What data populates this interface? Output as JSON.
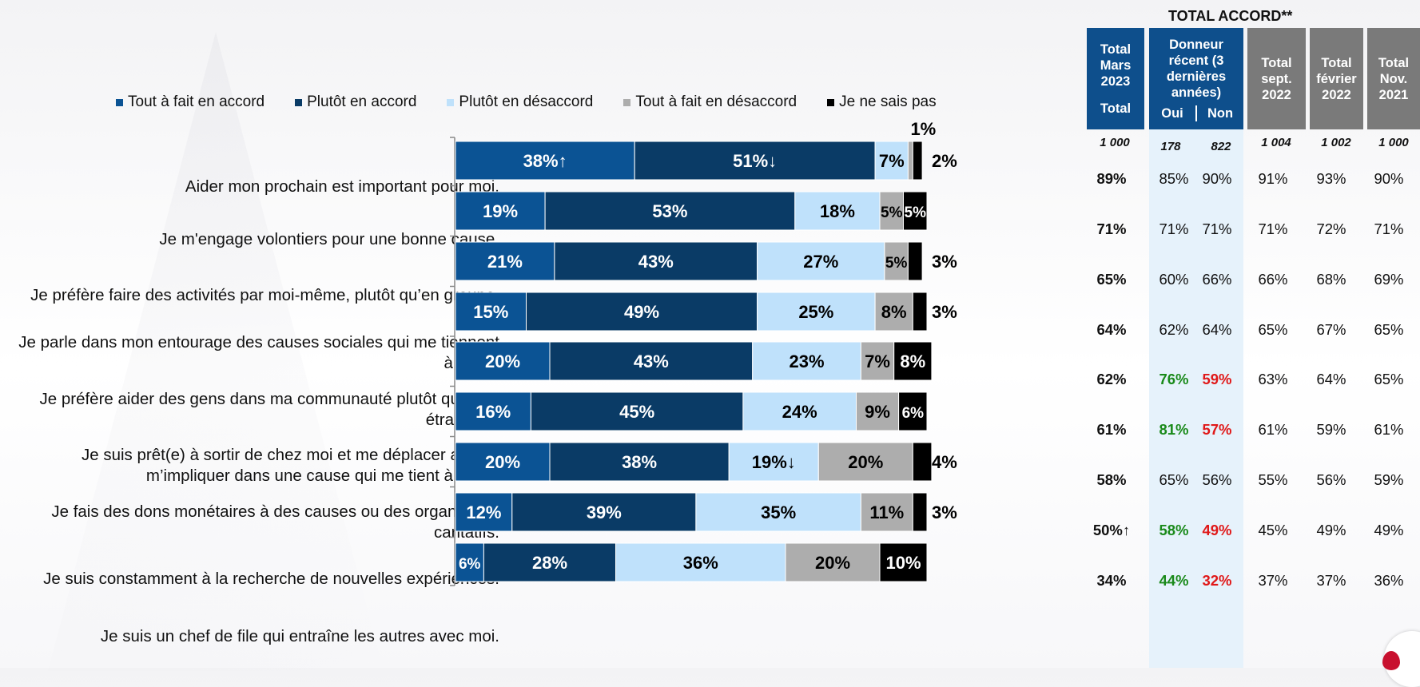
{
  "legend": [
    {
      "label": "Tout à fait en accord",
      "color": "#0b5394"
    },
    {
      "label": "Plutôt en accord",
      "color": "#0a3b66"
    },
    {
      "label": "Plutôt en désaccord",
      "color": "#bfe1fb"
    },
    {
      "label": "Tout à fait en désaccord",
      "color": "#adadad"
    },
    {
      "label": "Je ne sais pas",
      "color": "#000000"
    }
  ],
  "chart_data": {
    "type": "bar",
    "orientation": "horizontal-stacked-100",
    "categories": [
      "Aider mon prochain est important pour moi.",
      "Je m'engage volontiers pour une bonne cause.",
      "Je préfère faire des activités par moi-même, plutôt qu’en groupe.",
      "Je parle dans mon entourage des causes sociales qui me tiennent à cœur.",
      "Je préfère aider des gens dans ma communauté plutôt que des étrangers.",
      "Je suis prêt(e) à sortir de chez moi et me déplacer afin de m’impliquer dans une cause qui me tient à cœur.",
      "Je fais des dons monétaires à des causes ou des organismes caritatifs.",
      "Je suis constamment à la recherche de nouvelles expériences.",
      "Je suis un chef de file qui entraîne les autres avec moi."
    ],
    "series": [
      {
        "name": "Tout à fait en accord",
        "color": "#0b5394",
        "values": [
          38,
          19,
          21,
          15,
          20,
          16,
          20,
          12,
          6
        ],
        "labels": [
          "38%↑",
          "19%",
          "21%",
          "15%",
          "20%",
          "16%",
          "20%",
          "12%",
          "6%"
        ]
      },
      {
        "name": "Plutôt en accord",
        "color": "#0a3b66",
        "values": [
          51,
          53,
          43,
          49,
          43,
          45,
          38,
          39,
          28
        ],
        "labels": [
          "51%↓",
          "53%",
          "43%",
          "49%",
          "43%",
          "45%",
          "38%",
          "39%",
          "28%"
        ]
      },
      {
        "name": "Plutôt en désaccord",
        "color": "#bfe1fb",
        "values": [
          7,
          18,
          27,
          25,
          23,
          24,
          19,
          35,
          36
        ],
        "labels": [
          "7%",
          "18%",
          "27%",
          "25%",
          "23%",
          "24%",
          "19%↓",
          "35%",
          "36%"
        ]
      },
      {
        "name": "Tout à fait en désaccord",
        "color": "#adadad",
        "values": [
          1,
          5,
          5,
          8,
          7,
          9,
          20,
          11,
          20
        ],
        "labels": [
          "1%",
          "5%",
          "5%",
          "8%",
          "7%",
          "9%",
          "20%",
          "11%",
          "20%"
        ]
      },
      {
        "name": "Je ne sais pas",
        "color": "#000000",
        "values": [
          2,
          5,
          3,
          3,
          8,
          6,
          4,
          3,
          10
        ],
        "labels": [
          "2%",
          "5%",
          "3%",
          "3%",
          "8%",
          "6%",
          "4%",
          "3%",
          "10%"
        ]
      }
    ],
    "xlim": [
      0,
      100
    ]
  },
  "table": {
    "title": "TOTAL ACCORD**",
    "headers": {
      "total_mars": "Total Mars 2023",
      "total_sub": "Total",
      "donneur": "Donneur récent (3 dernières années)",
      "oui": "Oui",
      "non": "Non",
      "sept": "Total sept. 2022",
      "fev": "Total février 2022",
      "nov": "Total Nov. 2021"
    },
    "bases": [
      "1 000",
      "178",
      "822",
      "1 004",
      "1 002",
      "1 000"
    ],
    "rows": [
      {
        "total": "89%",
        "oui": "85%",
        "non": "90%",
        "sept": "91%",
        "fev": "93%",
        "nov": "90%",
        "oui_sig": "",
        "non_sig": ""
      },
      {
        "total": "71%",
        "oui": "71%",
        "non": "71%",
        "sept": "71%",
        "fev": "72%",
        "nov": "71%",
        "oui_sig": "",
        "non_sig": ""
      },
      {
        "total": "65%",
        "oui": "60%",
        "non": "66%",
        "sept": "66%",
        "fev": "68%",
        "nov": "69%",
        "oui_sig": "",
        "non_sig": ""
      },
      {
        "total": "64%",
        "oui": "62%",
        "non": "64%",
        "sept": "65%",
        "fev": "67%",
        "nov": "65%",
        "oui_sig": "",
        "non_sig": ""
      },
      {
        "total": "62%",
        "oui": "76%",
        "non": "59%",
        "sept": "63%",
        "fev": "64%",
        "nov": "65%",
        "oui_sig": "up",
        "non_sig": "down"
      },
      {
        "total": "61%",
        "oui": "81%",
        "non": "57%",
        "sept": "61%",
        "fev": "59%",
        "nov": "61%",
        "oui_sig": "up",
        "non_sig": "down"
      },
      {
        "total": "58%",
        "oui": "65%",
        "non": "56%",
        "sept": "55%",
        "fev": "56%",
        "nov": "59%",
        "oui_sig": "",
        "non_sig": ""
      },
      {
        "total": "50%↑",
        "oui": "58%",
        "non": "49%",
        "sept": "45%",
        "fev": "49%",
        "nov": "49%",
        "oui_sig": "up",
        "non_sig": "down"
      },
      {
        "total": "34%",
        "oui": "44%",
        "non": "32%",
        "sept": "37%",
        "fev": "37%",
        "nov": "36%",
        "oui_sig": "up",
        "non_sig": "down"
      }
    ]
  },
  "colors": {
    "sig_up": "#1a8a1a",
    "sig_down": "#e01818",
    "header_blue": "#0e4f8c",
    "header_gray": "#7a7a7a"
  }
}
